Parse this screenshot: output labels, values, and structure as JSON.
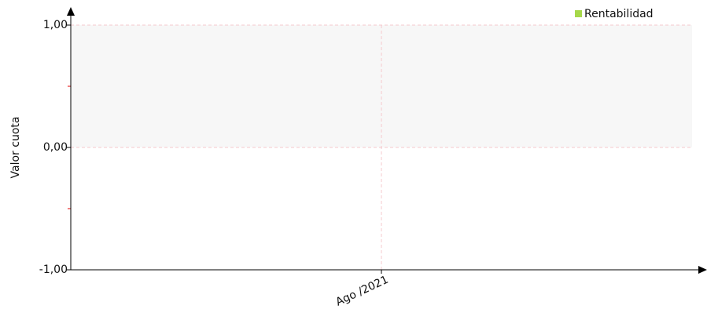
{
  "chart_data": {
    "type": "line",
    "y_label": "Valor cuota",
    "categories": [
      "Ago /2021"
    ],
    "series": [
      {
        "name": "Rentabilidad",
        "color": "#a6d84a",
        "values": [
          null
        ]
      }
    ],
    "ylim": [
      -1,
      1
    ],
    "yticks": [
      {
        "value": -1,
        "label": "-1,00"
      },
      {
        "value": 0,
        "label": "0,00"
      },
      {
        "value": 1,
        "label": "1,00"
      }
    ],
    "minor_yticks": [
      -0.5,
      0.5
    ],
    "grid": true,
    "legend": "top-right"
  }
}
